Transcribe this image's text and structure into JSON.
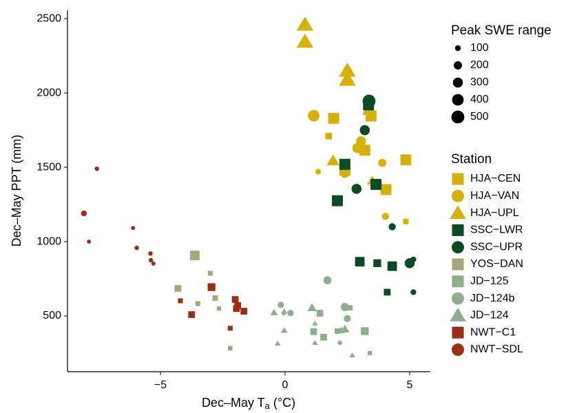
{
  "chart_data": {
    "type": "scatter",
    "xlabel": {
      "text": "Dec–May T",
      "sub": "a",
      "suffix": " (°C)"
    },
    "ylabel": "Dec–May PPT (mm)",
    "xlim": [
      -8.73,
      5.83
    ],
    "ylim": [
      125,
      2556
    ],
    "xticks": [
      {
        "value": -5,
        "label": "−5"
      },
      0,
      5
    ],
    "yticks": [
      500,
      1000,
      1500,
      2000,
      2500
    ],
    "size_legend": {
      "title": "Peak SWE range",
      "values": [
        100,
        200,
        300,
        400,
        500
      ]
    },
    "legend_title": "Station",
    "series": [
      {
        "name": "HJA−CEN",
        "color": "#d5b10b",
        "marker": "square",
        "x": [
          1.95,
          1.75,
          3.45,
          2.4,
          3.2,
          4.05,
          4.85,
          4.85
        ],
        "values": [
          1830,
          1710,
          1845,
          1480,
          1615,
          1350,
          1550,
          1135
        ],
        "sizes": [
          400,
          150,
          400,
          400,
          400,
          400,
          400,
          100
        ]
      },
      {
        "name": "HJA−VAN",
        "color": "#d5b10b",
        "marker": "circle",
        "x": [
          1.15,
          1.33,
          2.4,
          2.9,
          3.05,
          3.9,
          4.03
        ],
        "values": [
          1847,
          1470,
          1460,
          1630,
          1675,
          1530,
          1170
        ],
        "sizes": [
          400,
          100,
          250,
          300,
          300,
          200,
          150
        ]
      },
      {
        "name": "HJA−UPL",
        "color": "#d5b10b",
        "marker": "triangle",
        "x": [
          0.8,
          0.8,
          2.5,
          2.5,
          1.93,
          3.35,
          3.5
        ],
        "values": [
          2460,
          2345,
          2150,
          2090,
          1545,
          1885,
          1410
        ],
        "sizes": [
          500,
          500,
          500,
          500,
          300,
          300,
          200
        ]
      },
      {
        "name": "SSC−LWR",
        "color": "#0c4a24",
        "marker": "square",
        "x": [
          3.35,
          2.4,
          2.1,
          3.65,
          3.0,
          3.7,
          4.3,
          4.1
        ],
        "values": [
          1920,
          1520,
          1275,
          1385,
          865,
          855,
          835,
          660
        ],
        "sizes": [
          400,
          400,
          400,
          400,
          300,
          200,
          300,
          150
        ]
      },
      {
        "name": "SSC−UPR",
        "color": "#0c4a24",
        "marker": "circle",
        "x": [
          3.37,
          3.2,
          2.87,
          4.3,
          5.0,
          5.15,
          5.15
        ],
        "values": [
          1945,
          1750,
          1355,
          1100,
          855,
          880,
          660
        ],
        "sizes": [
          500,
          300,
          300,
          150,
          300,
          100,
          100
        ]
      },
      {
        "name": "YOS−DAN",
        "color": "#a9a57b",
        "marker": "square",
        "x": [
          -3.62,
          -4.3,
          -3.0,
          -3.5,
          -2.8,
          -2.65,
          -2.2
        ],
        "values": [
          907,
          685,
          787,
          583,
          620,
          550,
          283
        ],
        "sizes": [
          300,
          150,
          80,
          80,
          100,
          60,
          70
        ]
      },
      {
        "name": "JD−125",
        "color": "#8daf8c",
        "marker": "square",
        "x": [
          1.4,
          1.15,
          1.55,
          2.1,
          2.6,
          3.2,
          3.4
        ],
        "values": [
          518,
          394,
          357,
          398,
          555,
          398,
          250
        ],
        "sizes": [
          150,
          150,
          150,
          100,
          100,
          200,
          60
        ]
      },
      {
        "name": "JD−124b",
        "color": "#8daf8c",
        "marker": "circle",
        "x": [
          1.7,
          -0.17,
          -0.05,
          0.22,
          2.4,
          2.5,
          2.2
        ],
        "values": [
          740,
          575,
          520,
          520,
          560,
          482,
          320
        ],
        "sizes": [
          200,
          120,
          60,
          120,
          200,
          150,
          60
        ]
      },
      {
        "name": "JD−124",
        "color": "#8daf8c",
        "marker": "triangle",
        "x": [
          -0.44,
          -0.03,
          1.08,
          1.2,
          -0.03,
          -0.3,
          1.2,
          2.25,
          2.4,
          2.7
        ],
        "values": [
          523,
          532,
          555,
          450,
          403,
          315,
          320,
          403,
          412,
          236
        ],
        "sizes": [
          100,
          60,
          150,
          60,
          80,
          60,
          60,
          100,
          150,
          60
        ]
      },
      {
        "name": "NWT−C1",
        "color": "#9a2f15",
        "marker": "square",
        "x": [
          -2.95,
          -4.2,
          -3.75,
          -2.0,
          -1.9,
          -1.95,
          -1.65,
          -2.2
        ],
        "values": [
          694,
          602,
          509,
          611,
          570,
          550,
          532,
          417
        ],
        "sizes": [
          200,
          80,
          150,
          150,
          150,
          150,
          150,
          80
        ]
      },
      {
        "name": "NWT−SDL",
        "color": "#9a2f15",
        "marker": "circle",
        "x": [
          -8.07,
          -7.55,
          -7.87,
          -6.1,
          -5.95,
          -5.4,
          -5.38,
          -5.28
        ],
        "values": [
          1190,
          1490,
          1000,
          1092,
          958,
          920,
          875,
          852
        ],
        "sizes": [
          100,
          60,
          50,
          50,
          60,
          60,
          60,
          50
        ]
      }
    ]
  }
}
